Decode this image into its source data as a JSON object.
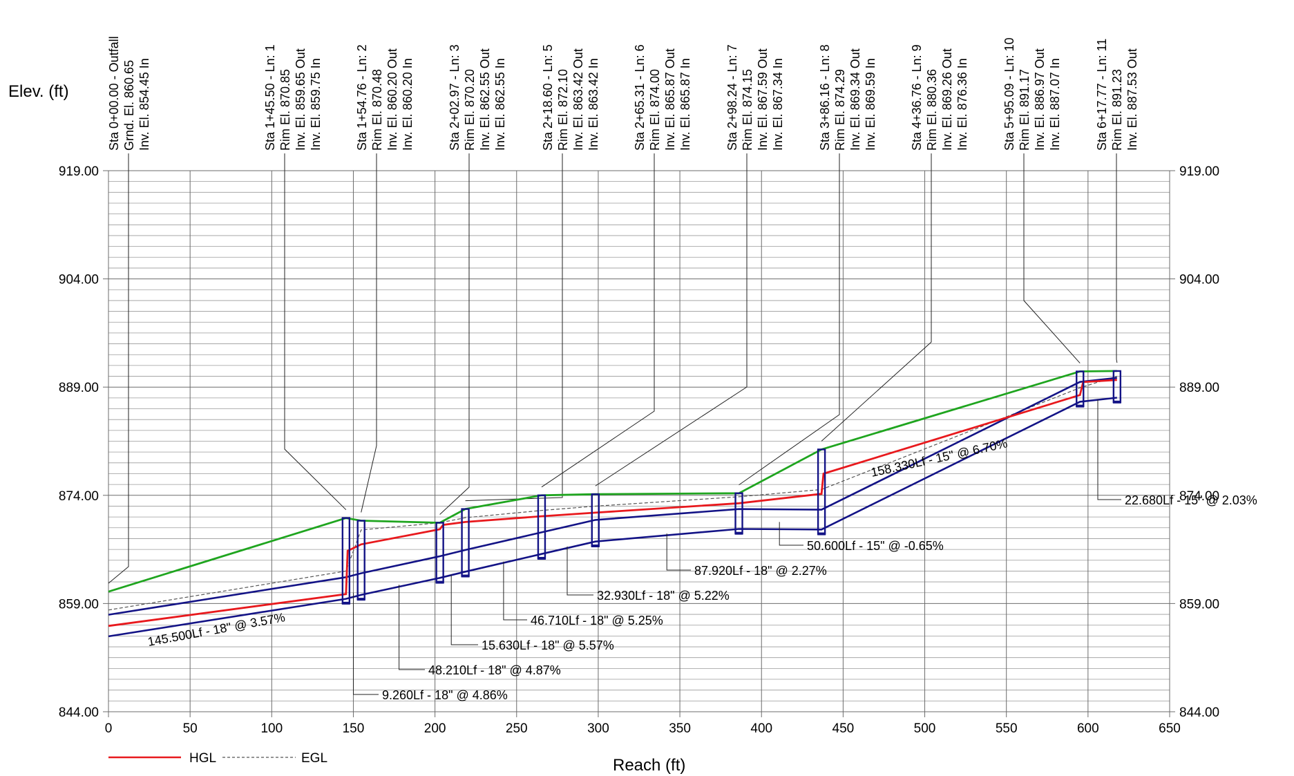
{
  "chart_data": {
    "type": "line",
    "title": "",
    "ylabel": "Elev. (ft)",
    "xlabel": "Reach (ft)",
    "xlim": [
      0,
      650
    ],
    "ylim": [
      844,
      919
    ],
    "x_ticks": [
      "0",
      "50",
      "100",
      "150",
      "200",
      "250",
      "300",
      "350",
      "400",
      "450",
      "500",
      "550",
      "600",
      "650"
    ],
    "y_ticks": [
      "844.00",
      "859.00",
      "874.00",
      "889.00",
      "904.00",
      "919.00"
    ],
    "grid": true,
    "legend_position": "bottom-left",
    "legend": [
      {
        "name": "HGL",
        "color": "#e8191d"
      },
      {
        "name": "EGL",
        "color": "#555555"
      }
    ],
    "colors": {
      "hgl": "#e8191d",
      "egl": "#555555",
      "ground": "#1fa51f",
      "pipe": "#131386"
    },
    "stations": [
      {
        "x": 0,
        "lines": [
          "Sta 0+00.00 - Outfall",
          "Grnd. El. 860.65",
          "Inv. El. 854.45 In"
        ]
      },
      {
        "x": 145.5,
        "lines": [
          "Sta 1+45.50 - Ln: 1",
          "Rim El. 870.85",
          "Inv. El. 859.65 Out",
          "Inv. El. 859.75 In"
        ]
      },
      {
        "x": 154.76,
        "lines": [
          "Sta 1+54.76 - Ln: 2",
          "Rim El. 870.48",
          "Inv. El. 860.20 Out",
          "Inv. El. 860.20 In"
        ]
      },
      {
        "x": 202.97,
        "lines": [
          "Sta 2+02.97 - Ln: 3",
          "Rim El. 870.20",
          "Inv. El. 862.55 Out",
          "Inv. El. 862.55 In"
        ]
      },
      {
        "x": 218.6,
        "lines": [
          "Sta 2+18.60 - Ln: 5",
          "Rim El. 872.10",
          "Inv. El. 863.42 Out",
          "Inv. El. 863.42 In"
        ]
      },
      {
        "x": 265.31,
        "lines": [
          "Sta 2+65.31 - Ln: 6",
          "Rim El. 874.00",
          "Inv. El. 865.87 Out",
          "Inv. El. 865.87 In"
        ]
      },
      {
        "x": 298.24,
        "lines": [
          "Sta 2+98.24 - Ln: 7",
          "Rim El. 874.15",
          "Inv. El. 867.59 Out",
          "Inv. El. 867.34 In"
        ]
      },
      {
        "x": 386.16,
        "lines": [
          "Sta 3+86.16 - Ln: 8",
          "Rim El. 874.29",
          "Inv. El. 869.34 Out",
          "Inv. El. 869.59 In"
        ]
      },
      {
        "x": 436.76,
        "lines": [
          "Sta 4+36.76 - Ln: 9",
          "Rim El. 880.36",
          "Inv. El. 869.26 Out",
          "Inv. El. 876.36 In"
        ]
      },
      {
        "x": 595.09,
        "lines": [
          "Sta 5+95.09 - Ln: 10",
          "Rim El. 891.17",
          "Inv. El. 886.97 Out",
          "Inv. El. 887.07 In"
        ]
      },
      {
        "x": 617.77,
        "lines": [
          "Sta 6+17.77 - Ln: 11",
          "Rim El. 891.23",
          "Inv. El. 887.53 Out"
        ]
      }
    ],
    "pipe_labels": [
      "145.500Lf - 18\" @ 3.57%",
      "9.260Lf - 18\" @ 4.86%",
      "48.210Lf - 18\" @ 4.87%",
      "15.630Lf - 18\" @ 5.57%",
      "46.710Lf - 18\" @ 5.25%",
      "32.930Lf - 18\" @ 5.22%",
      "87.920Lf - 18\" @ 2.27%",
      "50.600Lf - 15\" @ -0.65%",
      "158.330Lf - 15\" @ 6.70%",
      "22.680Lf - 15\" @ 2.03%"
    ],
    "series": [
      {
        "name": "HGL",
        "x": [
          0,
          145.5,
          146.5,
          154.76,
          202.97,
          205,
          218.6,
          265.31,
          298.24,
          386.16,
          436.76,
          438,
          595.09,
          597,
          617.77
        ],
        "y": [
          855.9,
          860.3,
          866.3,
          867.2,
          869.3,
          869.9,
          870.3,
          871.1,
          871.6,
          872.9,
          874.2,
          877.0,
          887.9,
          889.7,
          890.0
        ]
      },
      {
        "name": "EGL",
        "x": [
          0,
          145.5,
          154.76,
          202.97,
          218.6,
          265.31,
          298.24,
          386.16,
          436.76,
          595.09,
          617.77
        ],
        "y": [
          858.1,
          863.5,
          869.2,
          870.2,
          870.9,
          871.9,
          872.5,
          873.8,
          874.8,
          888.9,
          890.5
        ]
      },
      {
        "name": "Ground",
        "x": [
          0,
          145.5,
          154.76,
          202.97,
          218.6,
          265.31,
          298.24,
          386.16,
          436.76,
          595.09,
          617.77
        ],
        "y": [
          860.65,
          870.85,
          870.48,
          870.2,
          872.1,
          874.0,
          874.15,
          874.29,
          880.36,
          891.17,
          891.23
        ]
      },
      {
        "name": "Pipe invert",
        "x": [
          0,
          145.5,
          154.76,
          202.97,
          218.6,
          265.31,
          298.24,
          386.16,
          436.76,
          595.09,
          617.77
        ],
        "y": [
          854.45,
          859.65,
          860.2,
          862.55,
          863.42,
          865.87,
          867.59,
          869.34,
          869.26,
          886.97,
          887.53
        ]
      }
    ]
  }
}
